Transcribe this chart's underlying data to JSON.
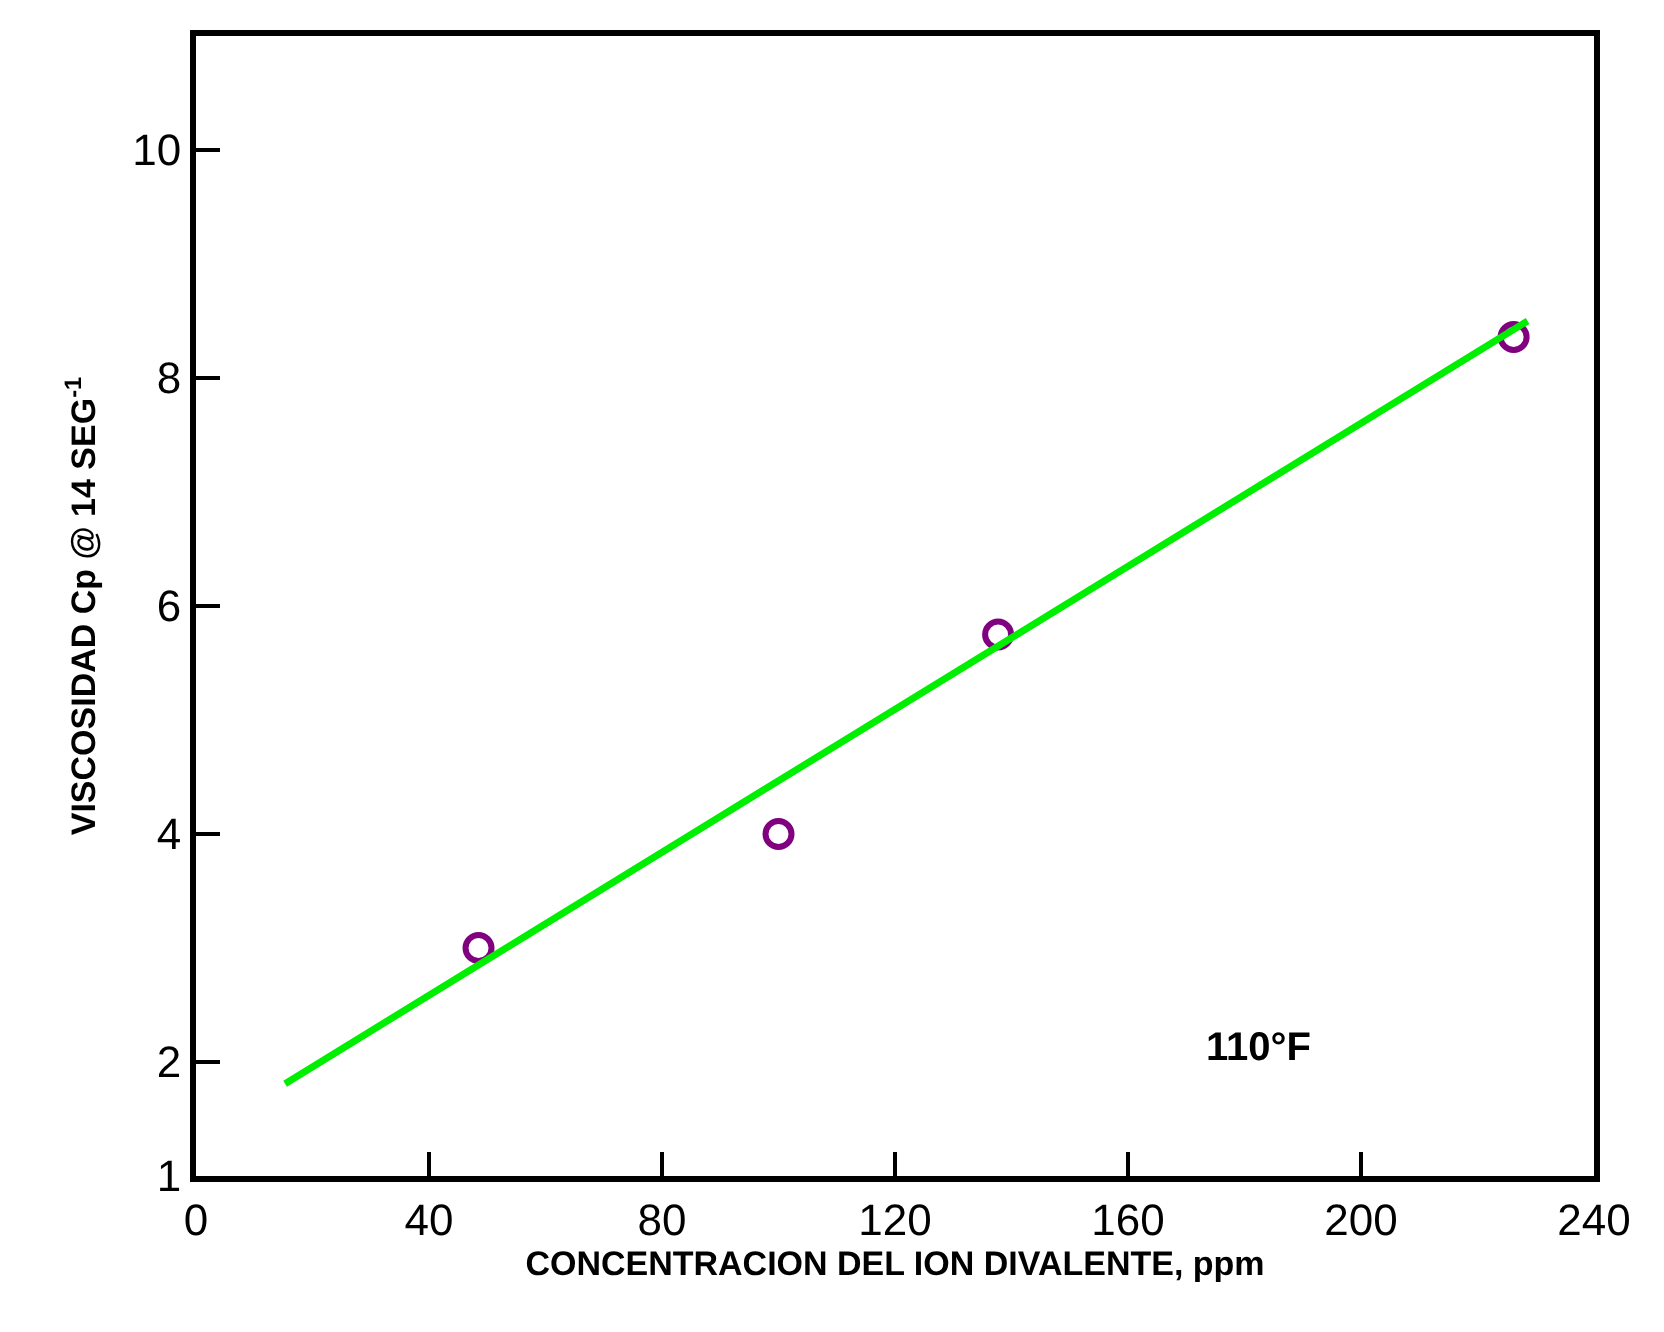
{
  "chart_data": {
    "type": "scatter",
    "xlabel": "CONCENTRACION DEL ION DIVALENTE, ppm",
    "ylabel": "VISCOSIDAD Cp @ 14 SEG$^{-1}$",
    "annotations": [
      "110°F"
    ],
    "xlim": [
      0,
      240
    ],
    "xticks": [
      0,
      40,
      80,
      120,
      160,
      200,
      240
    ],
    "ylim": [
      1,
      11
    ],
    "yticks": [
      1,
      2,
      4,
      6,
      8,
      10
    ],
    "series": [
      {
        "type": "scatter",
        "color": "#800080",
        "marker": "circle",
        "x": [
          48.5,
          100,
          137.7,
          226.2
        ],
        "values": [
          3.0,
          4.0,
          5.75,
          8.36
        ]
      },
      {
        "type": "line",
        "color": "#00ee00",
        "marker": "none",
        "line_style": "solid",
        "x": [
          15.3,
          228.6
        ],
        "values": [
          1.81,
          8.5
        ]
      }
    ]
  }
}
